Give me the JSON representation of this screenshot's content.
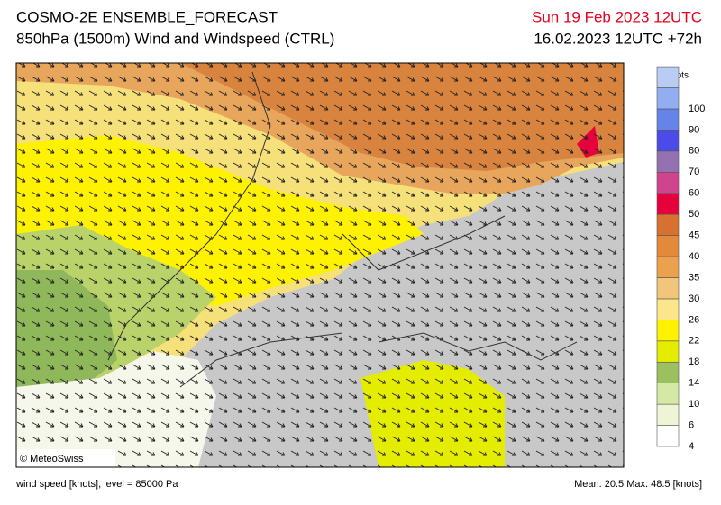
{
  "header": {
    "title": "COSMO-2E ENSEMBLE_FORECAST",
    "subtitle": "850hPa (1500m) Wind and Windspeed (CTRL)",
    "valid_time": "Sun 19 Feb 2023 12UTC",
    "run": "16.02.2023 12UTC +72h"
  },
  "colorbar": {
    "unit": "knots",
    "levels": [
      4,
      6,
      10,
      14,
      18,
      22,
      26,
      30,
      35,
      40,
      45,
      50,
      60,
      70,
      80,
      90,
      100
    ],
    "colors": [
      "#ffffff",
      "#eef5d6",
      "#d5e8a6",
      "#9cc060",
      "#e4ec00",
      "#fff200",
      "#fbe68c",
      "#f2c67a",
      "#eca24c",
      "#e2893a",
      "#d77030",
      "#e6003c",
      "#d0448e",
      "#9472b2",
      "#4b4be8",
      "#6684e8",
      "#92aef0",
      "#b9ccf4"
    ]
  },
  "credit": "© MeteoSwiss",
  "footer": {
    "left": "wind speed [knots], level = 85000 Pa",
    "right": "Mean:  20.5 Max:  48.5 [knots]"
  }
}
